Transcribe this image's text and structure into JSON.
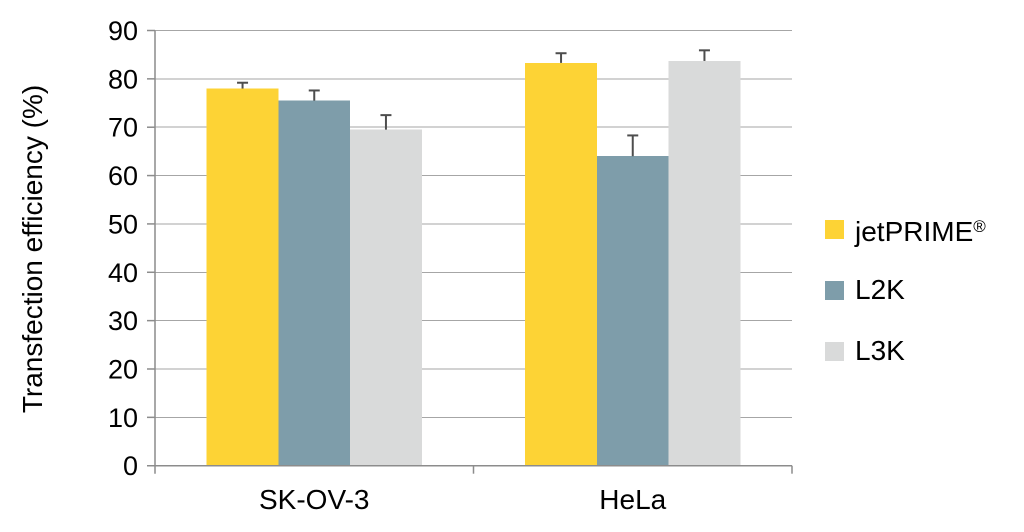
{
  "chart_data": {
    "type": "bar",
    "title": "",
    "categories": [
      "SK-OV-3",
      "HeLa"
    ],
    "series": [
      {
        "name": "jetPRIME®",
        "color": "#FDD335",
        "values": [
          78.0,
          83.3
        ],
        "errors": [
          1.2,
          2.0
        ]
      },
      {
        "name": "L2K",
        "color": "#7E9DAA",
        "values": [
          75.5,
          64.0
        ],
        "errors": [
          2.1,
          4.3
        ]
      },
      {
        "name": "L3K",
        "color": "#D9DADA",
        "values": [
          69.5,
          83.7
        ],
        "errors": [
          3.0,
          2.2
        ]
      }
    ],
    "xlabel": "",
    "ylabel": "Transfection efficiency (%)",
    "ylim": [
      0,
      90
    ],
    "yticks": [
      0,
      10,
      20,
      30,
      40,
      50,
      60,
      70,
      80,
      90
    ],
    "grid": true,
    "error_bars": "plus-direction-with-caps",
    "legend_position": "right"
  },
  "colors": {
    "background": "#FFFFFF",
    "gridline": "#A6A6A6",
    "axis": "#8C8C8C",
    "error_bar": "#4D4D4D",
    "text": "#000000"
  }
}
